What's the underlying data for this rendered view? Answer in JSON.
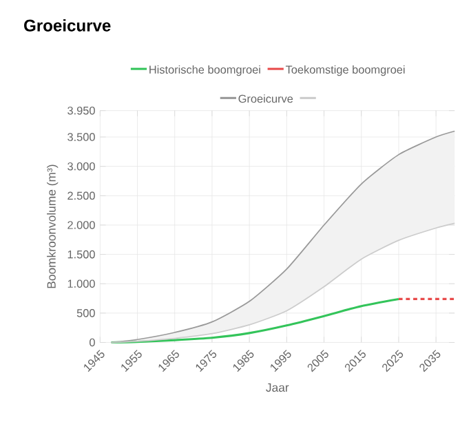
{
  "chart_data": {
    "type": "line",
    "title": "Groeicurve",
    "xlabel": "Jaar",
    "ylabel": "Boomkroonvolume (m³)",
    "xlim": [
      1945,
      2040
    ],
    "xticks": [
      1945,
      1955,
      1965,
      1975,
      1985,
      1995,
      2005,
      2015,
      2025,
      2035
    ],
    "ylim": [
      0,
      3950
    ],
    "yticks": [
      0,
      500,
      {
        "value": 1000,
        "label": "1.000"
      },
      {
        "value": 1500,
        "label": "1.500"
      },
      {
        "value": 2000,
        "label": "2.000"
      },
      {
        "value": 2500,
        "label": "2.500"
      },
      {
        "value": 3000,
        "label": "3.000"
      },
      {
        "value": 3500,
        "label": "3.500"
      },
      {
        "value": 3950,
        "label": "3.950"
      }
    ],
    "grid": true,
    "legend": "top",
    "marker": "none",
    "series": [
      {
        "name": "Historische boomgroei",
        "color": "#33c45a",
        "x": [
          1948,
          1955,
          1965,
          1975,
          1985,
          1995,
          2005,
          2015,
          2025
        ],
        "values": [
          0,
          10,
          40,
          80,
          160,
          290,
          450,
          620,
          740
        ]
      },
      {
        "name": "Toekomstige boomgroei",
        "color": "#e84b4b",
        "line_style": "dashed",
        "x": [
          2025,
          2040
        ],
        "values": [
          740,
          740
        ]
      },
      {
        "name": "Groeicurve",
        "color": "#999999",
        "x": [
          1948,
          1955,
          1965,
          1975,
          1985,
          1995,
          2005,
          2015,
          2025,
          2035,
          2040
        ],
        "values": [
          0,
          50,
          170,
          350,
          700,
          1250,
          2000,
          2700,
          3200,
          3500,
          3600
        ]
      },
      {
        "color": "#cccccc",
        "x": [
          1948,
          1955,
          1965,
          1975,
          1985,
          1995,
          2005,
          2015,
          2025,
          2035,
          2040
        ],
        "values": [
          0,
          20,
          70,
          150,
          300,
          540,
          950,
          1420,
          1740,
          1950,
          2030
        ],
        "lower": [
          0,
          20,
          70,
          150,
          300,
          540,
          950,
          1420,
          1740,
          1950,
          2030
        ],
        "upper": [
          0,
          50,
          170,
          350,
          700,
          1250,
          2000,
          2700,
          3200,
          3500,
          3600
        ]
      }
    ]
  }
}
